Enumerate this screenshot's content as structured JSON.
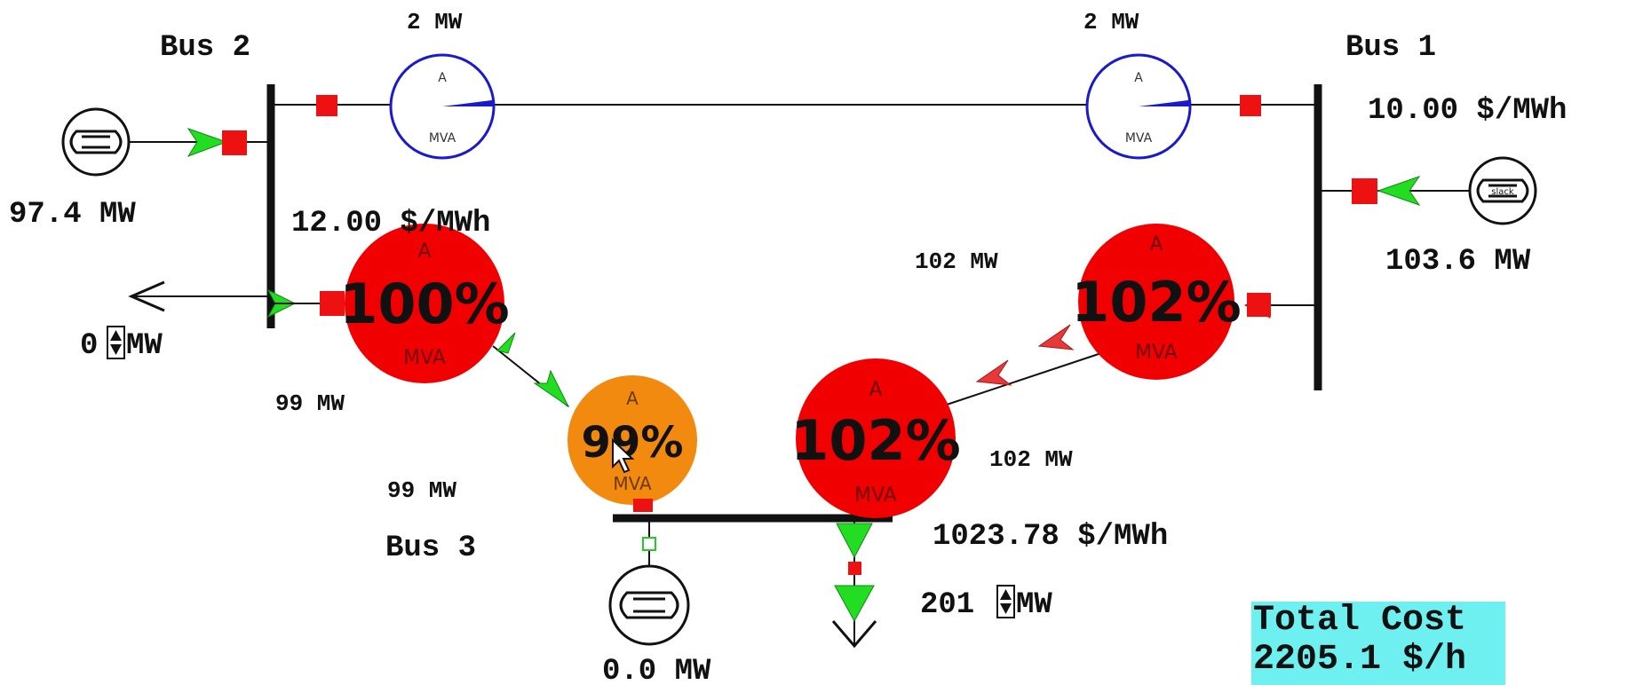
{
  "buses": {
    "bus1": {
      "label": "Bus 1",
      "price": "10.00 $/MWh"
    },
    "bus2": {
      "label": "Bus 2",
      "price": "12.00 $/MWh"
    },
    "bus3": {
      "label": "Bus 3",
      "price": "1023.78 $/MWh"
    }
  },
  "generators": {
    "gen_bus2": {
      "output": "97.4 MW"
    },
    "gen_bus1": {
      "output": "103.6 MW",
      "tag": "slack"
    },
    "gen_bus3": {
      "output": "0.0 MW"
    }
  },
  "loads": {
    "load_bus2": {
      "value": "0",
      "unit": "MW"
    },
    "load_bus3": {
      "value": "201",
      "unit": "MW"
    }
  },
  "lines": {
    "line_1_2": {
      "flow_left": "2 MW",
      "flow_right": "2 MW",
      "gauge_top": "A",
      "gauge_bottom": "MVA",
      "loading_percent": 2
    },
    "line_2_3": {
      "gauge_top": "A",
      "gauge_percent": "100%",
      "gauge_bottom": "MVA",
      "flow": "99 MW"
    },
    "line_1_3_upper": {
      "gauge_top": "A",
      "gauge_percent": "102%",
      "gauge_bottom": "MVA",
      "flow": "102 MW"
    },
    "line_1_3_lower": {
      "gauge_top": "A",
      "gauge_percent": "102%",
      "gauge_bottom": "MVA",
      "flow": "102 MW"
    },
    "line_3_gen": {
      "gauge_top": "A",
      "gauge_percent": "99%",
      "gauge_bottom": "MVA",
      "flow": "99 MW"
    }
  },
  "summary": {
    "label": "Total Cost",
    "value": "2205.1 $/h"
  },
  "colors": {
    "overloaded": "#f00000",
    "near_limit": "#f28a10",
    "flow_arrow": "#22dd22",
    "reverse_arrow": "#e83838",
    "breaker": "#ee1111",
    "gauge_outline": "#1a1acc",
    "cost_bg": "#6ff0f0"
  }
}
